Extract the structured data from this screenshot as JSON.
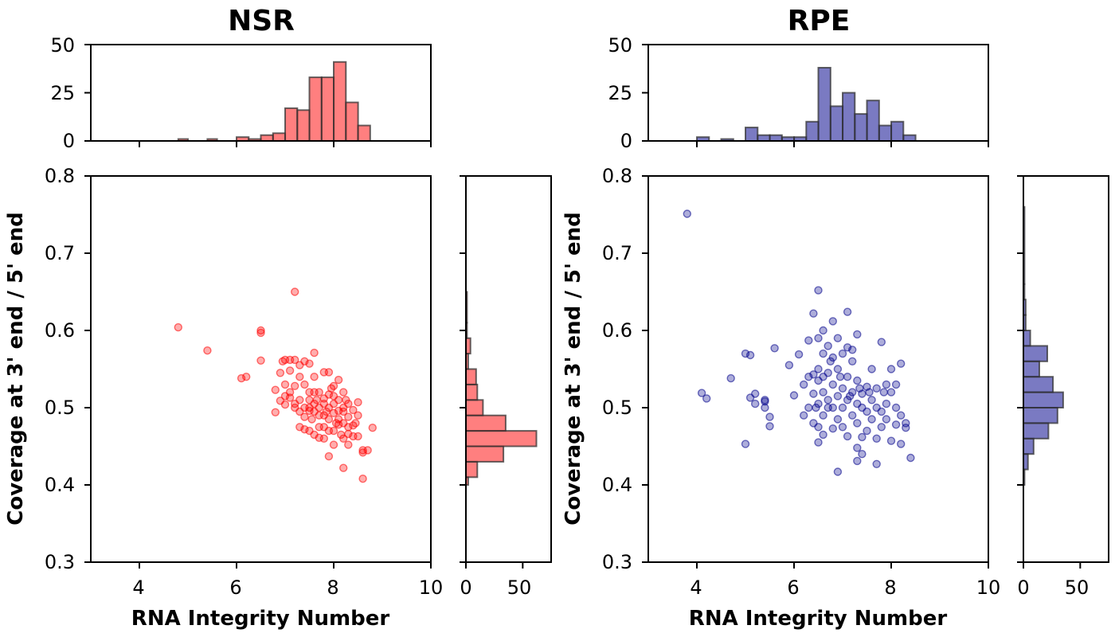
{
  "chart_data": [
    {
      "type": "scatter",
      "panel": "left",
      "title": "NSR",
      "xlabel": "RNA Integrity Number",
      "ylabel": "Coverage at 3' end / 5' end",
      "xlim": [
        3,
        10
      ],
      "ylim": [
        0.3,
        0.8
      ],
      "xticks": [
        "4",
        "6",
        "8",
        "10"
      ],
      "yticks": [
        "0.3",
        "0.4",
        "0.5",
        "0.6",
        "0.7",
        "0.8"
      ],
      "color": "#ff0000",
      "points": [
        [
          4.8,
          0.604
        ],
        [
          5.4,
          0.574
        ],
        [
          6.1,
          0.538
        ],
        [
          6.2,
          0.54
        ],
        [
          6.5,
          0.6
        ],
        [
          6.5,
          0.597
        ],
        [
          6.5,
          0.561
        ],
        [
          6.8,
          0.523
        ],
        [
          6.8,
          0.494
        ],
        [
          6.9,
          0.509
        ],
        [
          6.9,
          0.545
        ],
        [
          7.0,
          0.562
        ],
        [
          7.0,
          0.504
        ],
        [
          7.0,
          0.53
        ],
        [
          7.1,
          0.562
        ],
        [
          7.1,
          0.548
        ],
        [
          7.1,
          0.513
        ],
        [
          7.2,
          0.65
        ],
        [
          7.2,
          0.562
        ],
        [
          7.2,
          0.528
        ],
        [
          7.2,
          0.5
        ],
        [
          7.3,
          0.555
        ],
        [
          7.3,
          0.54
        ],
        [
          7.3,
          0.51
        ],
        [
          7.3,
          0.475
        ],
        [
          7.4,
          0.56
        ],
        [
          7.4,
          0.53
        ],
        [
          7.4,
          0.5
        ],
        [
          7.4,
          0.472
        ],
        [
          7.5,
          0.557
        ],
        [
          7.5,
          0.52
        ],
        [
          7.5,
          0.51
        ],
        [
          7.5,
          0.496
        ],
        [
          7.5,
          0.47
        ],
        [
          7.6,
          0.571
        ],
        [
          7.6,
          0.54
        ],
        [
          7.6,
          0.505
        ],
        [
          7.6,
          0.495
        ],
        [
          7.6,
          0.465
        ],
        [
          7.7,
          0.52
        ],
        [
          7.7,
          0.5
        ],
        [
          7.7,
          0.475
        ],
        [
          7.7,
          0.461
        ],
        [
          7.8,
          0.546
        ],
        [
          7.8,
          0.512
        ],
        [
          7.8,
          0.49
        ],
        [
          7.8,
          0.475
        ],
        [
          7.8,
          0.46
        ],
        [
          7.9,
          0.546
        ],
        [
          7.9,
          0.517
        ],
        [
          7.9,
          0.5
        ],
        [
          7.9,
          0.485
        ],
        [
          7.9,
          0.437
        ],
        [
          8.0,
          0.528
        ],
        [
          8.0,
          0.505
        ],
        [
          8.0,
          0.493
        ],
        [
          8.0,
          0.47
        ],
        [
          8.0,
          0.452
        ],
        [
          8.1,
          0.536
        ],
        [
          8.1,
          0.51
        ],
        [
          8.1,
          0.496
        ],
        [
          8.1,
          0.478
        ],
        [
          8.2,
          0.52
        ],
        [
          8.2,
          0.5
        ],
        [
          8.2,
          0.48
        ],
        [
          8.2,
          0.46
        ],
        [
          8.2,
          0.422
        ],
        [
          8.3,
          0.505
        ],
        [
          8.3,
          0.488
        ],
        [
          8.3,
          0.466
        ],
        [
          8.3,
          0.452
        ],
        [
          8.4,
          0.497
        ],
        [
          8.4,
          0.477
        ],
        [
          8.4,
          0.463
        ],
        [
          8.5,
          0.507
        ],
        [
          8.5,
          0.49
        ],
        [
          8.5,
          0.463
        ],
        [
          8.6,
          0.445
        ],
        [
          8.6,
          0.442
        ],
        [
          8.6,
          0.408
        ],
        [
          8.7,
          0.445
        ],
        [
          8.8,
          0.474
        ],
        [
          7.2,
          0.505
        ],
        [
          7.4,
          0.488
        ],
        [
          7.6,
          0.52
        ],
        [
          7.8,
          0.505
        ],
        [
          8.0,
          0.515
        ],
        [
          8.2,
          0.495
        ],
        [
          7.5,
          0.5
        ],
        [
          7.7,
          0.49
        ],
        [
          7.9,
          0.47
        ],
        [
          8.1,
          0.485
        ],
        [
          8.3,
          0.475
        ],
        [
          7.3,
          0.495
        ],
        [
          7.1,
          0.52
        ],
        [
          7.0,
          0.515
        ],
        [
          6.95,
          0.56
        ],
        [
          7.55,
          0.485
        ],
        [
          7.85,
          0.495
        ],
        [
          8.05,
          0.48
        ],
        [
          8.25,
          0.51
        ],
        [
          8.45,
          0.48
        ],
        [
          7.65,
          0.51
        ],
        [
          7.95,
          0.525
        ],
        [
          8.15,
          0.465
        ]
      ],
      "top_hist": {
        "axis_range": [
          0,
          50
        ],
        "yticks": [
          "0",
          "25",
          "50"
        ],
        "edges": [
          4.8,
          5.0,
          5.2,
          5.4,
          5.6,
          5.8,
          6.0,
          6.25,
          6.5,
          6.75,
          7.0,
          7.25,
          7.5,
          7.75,
          8.0,
          8.25,
          8.5,
          8.75
        ],
        "counts": [
          1,
          0,
          0,
          1,
          0,
          0,
          2,
          1,
          3,
          4,
          17,
          16,
          33,
          33,
          41,
          20,
          8
        ]
      },
      "right_hist": {
        "axis_range": [
          0,
          75
        ],
        "xticks": [
          "0",
          "50"
        ],
        "edges": [
          0.4,
          0.41,
          0.43,
          0.45,
          0.47,
          0.49,
          0.51,
          0.53,
          0.55,
          0.57,
          0.59,
          0.61,
          0.65
        ],
        "counts": [
          2,
          10,
          33,
          62,
          35,
          15,
          10,
          9,
          2,
          4,
          1,
          1
        ]
      }
    },
    {
      "type": "scatter",
      "panel": "right",
      "title": "RPE",
      "xlabel": "RNA Integrity Number",
      "ylabel": "Coverage at 3' end / 5' end",
      "xlim": [
        3,
        10
      ],
      "ylim": [
        0.3,
        0.8
      ],
      "xticks": [
        "4",
        "6",
        "8",
        "10"
      ],
      "yticks": [
        "0.3",
        "0.4",
        "0.5",
        "0.6",
        "0.7",
        "0.8"
      ],
      "color": "#00008b",
      "points": [
        [
          3.8,
          0.751
        ],
        [
          4.1,
          0.519
        ],
        [
          4.2,
          0.512
        ],
        [
          4.7,
          0.538
        ],
        [
          5.0,
          0.453
        ],
        [
          5.0,
          0.57
        ],
        [
          5.1,
          0.513
        ],
        [
          5.1,
          0.568
        ],
        [
          5.2,
          0.518
        ],
        [
          5.2,
          0.505
        ],
        [
          5.4,
          0.508
        ],
        [
          5.4,
          0.51
        ],
        [
          5.4,
          0.5
        ],
        [
          5.5,
          0.488
        ],
        [
          5.5,
          0.476
        ],
        [
          5.6,
          0.577
        ],
        [
          5.9,
          0.555
        ],
        [
          6.0,
          0.516
        ],
        [
          6.1,
          0.569
        ],
        [
          6.2,
          0.49
        ],
        [
          6.3,
          0.54
        ],
        [
          6.3,
          0.5
        ],
        [
          6.3,
          0.587
        ],
        [
          6.4,
          0.622
        ],
        [
          6.4,
          0.543
        ],
        [
          6.4,
          0.518
        ],
        [
          6.4,
          0.48
        ],
        [
          6.5,
          0.652
        ],
        [
          6.5,
          0.59
        ],
        [
          6.5,
          0.55
        ],
        [
          6.5,
          0.535
        ],
        [
          6.5,
          0.505
        ],
        [
          6.5,
          0.475
        ],
        [
          6.5,
          0.455
        ],
        [
          6.6,
          0.6
        ],
        [
          6.6,
          0.57
        ],
        [
          6.6,
          0.54
        ],
        [
          6.6,
          0.52
        ],
        [
          6.6,
          0.49
        ],
        [
          6.6,
          0.465
        ],
        [
          6.7,
          0.58
        ],
        [
          6.7,
          0.545
        ],
        [
          6.7,
          0.51
        ],
        [
          6.7,
          0.5
        ],
        [
          6.8,
          0.612
        ],
        [
          6.8,
          0.565
        ],
        [
          6.8,
          0.53
        ],
        [
          6.8,
          0.5
        ],
        [
          6.8,
          0.473
        ],
        [
          6.9,
          0.59
        ],
        [
          6.9,
          0.55
        ],
        [
          6.9,
          0.515
        ],
        [
          6.9,
          0.485
        ],
        [
          6.9,
          0.417
        ],
        [
          7.0,
          0.57
        ],
        [
          7.0,
          0.525
        ],
        [
          7.0,
          0.5
        ],
        [
          7.0,
          0.475
        ],
        [
          7.1,
          0.624
        ],
        [
          7.1,
          0.578
        ],
        [
          7.1,
          0.54
        ],
        [
          7.1,
          0.51
        ],
        [
          7.1,
          0.463
        ],
        [
          7.2,
          0.575
        ],
        [
          7.2,
          0.56
        ],
        [
          7.2,
          0.52
        ],
        [
          7.2,
          0.49
        ],
        [
          7.3,
          0.595
        ],
        [
          7.3,
          0.535
        ],
        [
          7.3,
          0.505
        ],
        [
          7.3,
          0.48
        ],
        [
          7.3,
          0.448
        ],
        [
          7.3,
          0.431
        ],
        [
          7.4,
          0.518
        ],
        [
          7.4,
          0.5
        ],
        [
          7.4,
          0.462
        ],
        [
          7.4,
          0.44
        ],
        [
          7.5,
          0.527
        ],
        [
          7.5,
          0.495
        ],
        [
          7.5,
          0.47
        ],
        [
          7.6,
          0.55
        ],
        [
          7.6,
          0.51
        ],
        [
          7.6,
          0.485
        ],
        [
          7.7,
          0.525
        ],
        [
          7.7,
          0.5
        ],
        [
          7.7,
          0.46
        ],
        [
          7.7,
          0.427
        ],
        [
          7.8,
          0.585
        ],
        [
          7.8,
          0.495
        ],
        [
          7.8,
          0.475
        ],
        [
          7.9,
          0.53
        ],
        [
          7.9,
          0.505
        ],
        [
          7.9,
          0.485
        ],
        [
          8.0,
          0.55
        ],
        [
          8.0,
          0.52
        ],
        [
          8.0,
          0.457
        ],
        [
          8.1,
          0.53
        ],
        [
          8.1,
          0.5
        ],
        [
          8.1,
          0.478
        ],
        [
          8.2,
          0.557
        ],
        [
          8.2,
          0.49
        ],
        [
          8.2,
          0.453
        ],
        [
          8.3,
          0.48
        ],
        [
          8.3,
          0.474
        ],
        [
          8.4,
          0.435
        ],
        [
          6.2,
          0.53
        ],
        [
          6.45,
          0.5
        ],
        [
          6.75,
          0.56
        ],
        [
          6.95,
          0.54
        ],
        [
          7.15,
          0.515
        ],
        [
          7.35,
          0.525
        ],
        [
          7.55,
          0.52
        ],
        [
          7.85,
          0.52
        ]
      ],
      "top_hist": {
        "axis_range": [
          0,
          50
        ],
        "yticks": [
          "0",
          "25",
          "50"
        ],
        "edges": [
          4.0,
          4.25,
          4.5,
          4.75,
          5.0,
          5.25,
          5.5,
          5.75,
          6.0,
          6.25,
          6.5,
          6.75,
          7.0,
          7.25,
          7.5,
          7.75,
          8.0,
          8.25,
          8.5
        ],
        "counts": [
          2,
          0,
          1,
          0,
          7,
          3,
          3,
          2,
          2,
          10,
          38,
          18,
          25,
          14,
          21,
          8,
          10,
          3
        ]
      },
      "right_hist": {
        "axis_range": [
          0,
          75
        ],
        "xticks": [
          "0",
          "50"
        ],
        "edges": [
          0.4,
          0.42,
          0.44,
          0.46,
          0.48,
          0.5,
          0.52,
          0.54,
          0.56,
          0.58,
          0.6,
          0.62,
          0.64,
          0.66,
          0.76
        ],
        "counts": [
          1,
          4,
          9,
          22,
          30,
          35,
          26,
          14,
          21,
          6,
          2,
          2,
          1,
          1
        ]
      }
    }
  ]
}
